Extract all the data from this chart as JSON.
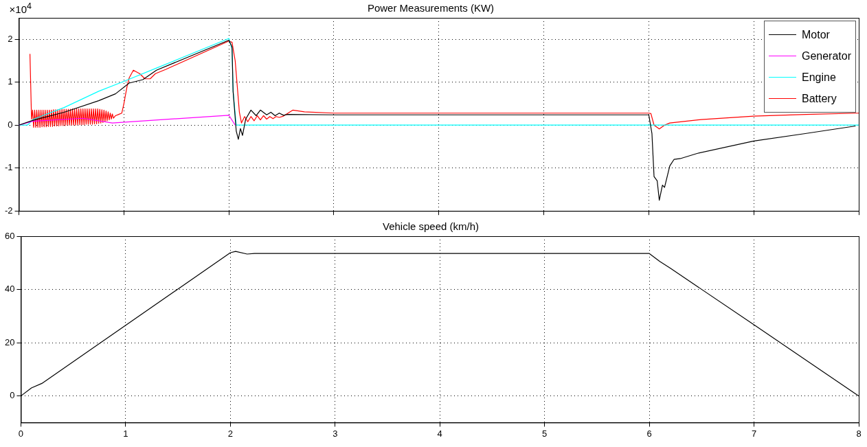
{
  "chart_data": [
    {
      "type": "line",
      "title": "Power Measurements (KW)",
      "annotations": [
        "×10$^{4}$"
      ],
      "xlim": [
        0,
        8
      ],
      "xticks": [
        0,
        1,
        2,
        3,
        4,
        5,
        6,
        7,
        8
      ],
      "ylim": [
        -2,
        2.5
      ],
      "yticks": [
        -2,
        -1,
        0,
        1,
        2
      ],
      "tick_labels": "y",
      "grid": true,
      "legend": "top right",
      "line_style": "solid",
      "marker": "none",
      "series": [
        {
          "name": "Motor",
          "color": "#000000",
          "x": [
            0,
            0.13,
            0.43,
            0.76,
            0.92,
            1.05,
            1.18,
            1.31,
            2.0,
            2.03,
            2.04,
            2.07,
            2.09,
            2.11,
            2.13,
            2.16,
            2.21,
            2.26,
            2.3,
            2.36,
            2.4,
            2.44,
            2.48,
            2.52,
            2.56,
            3.0,
            4.0,
            5.0,
            6.0,
            6.03,
            6.05,
            6.08,
            6.1,
            6.13,
            6.15,
            6.2,
            6.24,
            6.3,
            6.46,
            7.0,
            7.48,
            7.97
          ],
          "values": [
            0,
            0.11,
            0.3,
            0.57,
            0.73,
            0.98,
            1.06,
            1.28,
            1.98,
            1.82,
            0.79,
            -0.14,
            -0.33,
            -0.08,
            -0.24,
            0.14,
            0.35,
            0.22,
            0.35,
            0.24,
            0.3,
            0.22,
            0.28,
            0.23,
            0.25,
            0.24,
            0.24,
            0.24,
            0.24,
            -0.2,
            -1.2,
            -1.3,
            -1.75,
            -1.4,
            -1.45,
            -0.95,
            -0.8,
            -0.78,
            -0.66,
            -0.37,
            -0.2,
            -0.02
          ]
        },
        {
          "name": "Generator",
          "color": "#ff00ff",
          "x": [
            0,
            0.13,
            0.61,
            0.89,
            2.0,
            2.06
          ],
          "values": [
            0,
            0.09,
            0.16,
            0.05,
            0.23,
            0
          ]
        },
        {
          "name": "Engine",
          "color": "#00ffff",
          "x": [
            0,
            0.08,
            0.14,
            0.43,
            0.76,
            1.0,
            1.31,
            2.0,
            2.03,
            2.04,
            2.07,
            8.0
          ],
          "values": [
            0,
            0,
            0.14,
            0.41,
            0.79,
            1.02,
            1.33,
            2.02,
            1.77,
            0.79,
            0,
            0
          ]
        },
        {
          "name": "Battery",
          "color": "#ff0000",
          "x": [
            0.105,
            0.12,
            0.13,
            0.14,
            0.15,
            0.16,
            0.17,
            0.18,
            0.19,
            0.2,
            0.21,
            0.22,
            0.23,
            0.24,
            0.25,
            0.26,
            0.27,
            0.28,
            0.29,
            0.3,
            0.31,
            0.32,
            0.33,
            0.34,
            0.35,
            0.36,
            0.37,
            0.38,
            0.39,
            0.4,
            0.41,
            0.42,
            0.43,
            0.44,
            0.45,
            0.46,
            0.47,
            0.48,
            0.49,
            0.5,
            0.51,
            0.52,
            0.53,
            0.54,
            0.55,
            0.56,
            0.57,
            0.58,
            0.59,
            0.6,
            0.61,
            0.62,
            0.63,
            0.64,
            0.65,
            0.66,
            0.67,
            0.68,
            0.69,
            0.7,
            0.71,
            0.72,
            0.73,
            0.74,
            0.75,
            0.76,
            0.77,
            0.78,
            0.79,
            0.8,
            0.81,
            0.82,
            0.83,
            0.84,
            0.85,
            0.86,
            0.87,
            0.88,
            0.89,
            0.9,
            0.92,
            0.95,
            0.98,
            1.0,
            1.03,
            1.05,
            1.09,
            1.15,
            1.2,
            1.25,
            1.3,
            1.4,
            2.0,
            2.03,
            2.06,
            2.08,
            2.1,
            2.12,
            2.15,
            2.18,
            2.21,
            2.24,
            2.27,
            2.3,
            2.33,
            2.36,
            2.39,
            2.42,
            2.45,
            2.48,
            2.52,
            2.61,
            2.72,
            3.0,
            4.0,
            5.0,
            6.0,
            6.02,
            6.05,
            6.1,
            6.15,
            6.2,
            6.5,
            7.0,
            7.5,
            8.0
          ],
          "values": [
            1.66,
            0.14,
            0.35,
            -0.05,
            0.35,
            -0.05,
            0.35,
            -0.05,
            0.35,
            -0.05,
            0.35,
            -0.04,
            0.35,
            -0.04,
            0.35,
            -0.04,
            0.35,
            -0.03,
            0.35,
            -0.03,
            0.35,
            -0.03,
            0.36,
            -0.02,
            0.36,
            -0.02,
            0.36,
            -0.02,
            0.36,
            -0.01,
            0.37,
            -0.01,
            0.37,
            -0.01,
            0.37,
            0,
            0.37,
            0,
            0.37,
            0,
            0.38,
            0,
            0.38,
            0,
            0.38,
            0.01,
            0.38,
            0.01,
            0.38,
            0.01,
            0.38,
            0.01,
            0.38,
            0.02,
            0.38,
            0.02,
            0.38,
            0.02,
            0.38,
            0.02,
            0.38,
            0.03,
            0.38,
            0.03,
            0.38,
            0.04,
            0.37,
            0.05,
            0.36,
            0.06,
            0.35,
            0.08,
            0.33,
            0.1,
            0.31,
            0.12,
            0.28,
            0.14,
            0.26,
            0.16,
            0.22,
            0.25,
            0.28,
            0.5,
            0.9,
            1.1,
            1.28,
            1.2,
            1.08,
            1.08,
            1.2,
            1.3,
            1.96,
            1.93,
            1.5,
            0.9,
            0.3,
            0.05,
            0.2,
            0.08,
            0.2,
            0.1,
            0.22,
            0.12,
            0.22,
            0.14,
            0.2,
            0.15,
            0.2,
            0.18,
            0.21,
            0.35,
            0.31,
            0.28,
            0.28,
            0.28,
            0.28,
            0.27,
            0,
            -0.09,
            0,
            0.05,
            0.13,
            0.21,
            0.25,
            0.28
          ]
        }
      ]
    },
    {
      "type": "line",
      "title": "Vehicle speed (km/h)",
      "xlim": [
        0,
        8
      ],
      "xticks": [
        0,
        1,
        2,
        3,
        4,
        5,
        6,
        7,
        8
      ],
      "ylim": [
        -10,
        60
      ],
      "yticks": [
        0,
        20,
        40,
        60
      ],
      "grid": true,
      "line_style": "solid",
      "marker": "none",
      "series": [
        {
          "color": "#000000",
          "x": [
            0,
            0.1,
            0.2,
            2.0,
            2.05,
            2.16,
            2.23,
            3.0,
            4.0,
            5.0,
            6.0,
            6.1,
            6.2,
            7.0,
            8.0
          ],
          "values": [
            0,
            3,
            4.7,
            53.8,
            54.3,
            53.3,
            53.5,
            53.5,
            53.5,
            53.5,
            53.5,
            50.5,
            48,
            26.7,
            0
          ]
        }
      ]
    }
  ]
}
